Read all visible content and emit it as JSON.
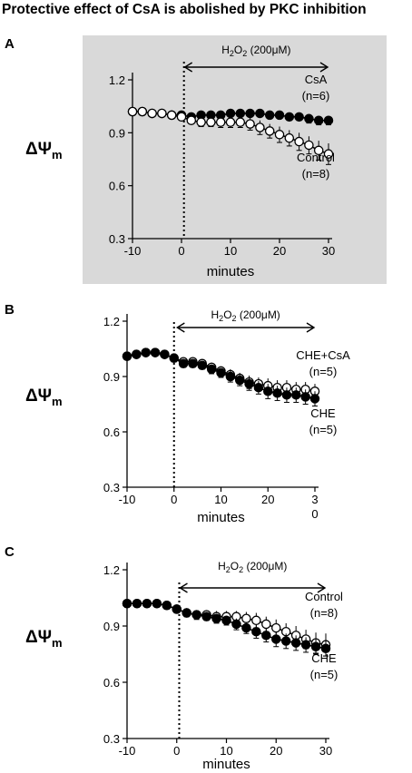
{
  "title": "Protective effect of CsA is abolished by PKC inhibition",
  "panels": [
    {
      "letter": "A",
      "shaded": true
    },
    {
      "letter": "B",
      "shaded": false
    },
    {
      "letter": "C",
      "shaded": false
    }
  ],
  "colors": {
    "panel_background": "#d9d9d9",
    "axis": "#000000",
    "filled_marker": "#000000",
    "open_marker": "#ffffff"
  },
  "chart_data": [
    {
      "type": "line",
      "panel": "A",
      "xlabel": "minutes",
      "ylabel": "ΔΨm",
      "ylabel_main": "ΔΨ",
      "ylabel_sub": "m",
      "xlim": [
        -10,
        30
      ],
      "ylim": [
        0.3,
        1.2
      ],
      "x_ticks": [
        -10,
        0,
        10,
        20,
        30
      ],
      "x_tick_labels": [
        "-10",
        "0",
        "10",
        "20",
        "30"
      ],
      "y_ticks": [
        0.3,
        0.6,
        0.9,
        1.2
      ],
      "y_tick_labels": [
        "0.3",
        "0.6",
        "0.9",
        "1.2"
      ],
      "grid": false,
      "dotted_line_x": 0.5,
      "annotation": {
        "text_main": "H",
        "sub1": "2",
        "mid": "O",
        "sub2": "2",
        "tail": " (200μM)",
        "x_start": 0.5,
        "x_end": 30
      },
      "series": [
        {
          "name": "CsA",
          "label_n": "(n=6)",
          "marker": "filled",
          "x": [
            -10,
            -8,
            -6,
            -4,
            -2,
            0,
            2,
            4,
            6,
            8,
            10,
            12,
            14,
            16,
            18,
            20,
            22,
            24,
            26,
            28,
            30
          ],
          "y": [
            1.02,
            1.02,
            1.01,
            1.01,
            1.0,
            1.0,
            0.99,
            1.0,
            1.0,
            1.0,
            1.01,
            1.01,
            1.01,
            1.01,
            1.0,
            1.0,
            0.99,
            0.99,
            0.98,
            0.97,
            0.97
          ],
          "err": [
            0.015,
            0.015,
            0.015,
            0.015,
            0.015,
            0.015,
            0.015,
            0.015,
            0.015,
            0.015,
            0.02,
            0.02,
            0.02,
            0.02,
            0.02,
            0.02,
            0.02,
            0.02,
            0.025,
            0.025,
            0.025
          ]
        },
        {
          "name": "Control",
          "label_n": "(n=8)",
          "marker": "open",
          "x": [
            -10,
            -8,
            -6,
            -4,
            -2,
            0,
            2,
            4,
            6,
            8,
            10,
            12,
            14,
            16,
            18,
            20,
            22,
            24,
            26,
            28,
            30
          ],
          "y": [
            1.02,
            1.02,
            1.01,
            1.01,
            1.0,
            0.99,
            0.97,
            0.96,
            0.96,
            0.96,
            0.96,
            0.96,
            0.95,
            0.93,
            0.91,
            0.89,
            0.87,
            0.85,
            0.83,
            0.8,
            0.78
          ],
          "err": [
            0.02,
            0.02,
            0.02,
            0.02,
            0.02,
            0.02,
            0.02,
            0.025,
            0.025,
            0.03,
            0.03,
            0.03,
            0.035,
            0.04,
            0.04,
            0.045,
            0.045,
            0.05,
            0.05,
            0.055,
            0.06
          ]
        }
      ]
    },
    {
      "type": "line",
      "panel": "B",
      "xlabel": "minutes",
      "ylabel": "ΔΨm",
      "ylabel_main": "ΔΨ",
      "ylabel_sub": "m",
      "xlim": [
        -10,
        30
      ],
      "ylim": [
        0.3,
        1.2
      ],
      "x_ticks": [
        -10,
        0,
        10,
        20,
        30
      ],
      "x_tick_labels": [
        "-10",
        "0",
        "10",
        "20",
        "3\n0"
      ],
      "y_ticks": [
        0.3,
        0.6,
        0.9,
        1.2
      ],
      "y_tick_labels": [
        "0.3",
        "0.6",
        "0.9",
        "1.2"
      ],
      "grid": false,
      "dotted_line_x": 0,
      "annotation": {
        "text_main": "H",
        "sub1": "2",
        "mid": "O",
        "sub2": "2",
        "tail": " (200μM)",
        "x_start": 0.5,
        "x_end": 30
      },
      "series": [
        {
          "name": "CHE+CsA",
          "label_n": "(n=5)",
          "marker": "open",
          "x": [
            -10,
            -8,
            -6,
            -4,
            -2,
            0,
            2,
            4,
            6,
            8,
            10,
            12,
            14,
            16,
            18,
            20,
            22,
            24,
            26,
            28,
            30
          ],
          "y": [
            1.01,
            1.02,
            1.03,
            1.03,
            1.02,
            1.0,
            0.98,
            0.98,
            0.97,
            0.95,
            0.93,
            0.91,
            0.89,
            0.87,
            0.86,
            0.85,
            0.84,
            0.84,
            0.83,
            0.83,
            0.82
          ],
          "err": [
            0.015,
            0.015,
            0.015,
            0.015,
            0.015,
            0.02,
            0.02,
            0.02,
            0.02,
            0.025,
            0.025,
            0.03,
            0.03,
            0.035,
            0.035,
            0.04,
            0.04,
            0.04,
            0.04,
            0.04,
            0.04
          ]
        },
        {
          "name": "CHE",
          "label_n": "(n=5)",
          "marker": "filled",
          "x": [
            -10,
            -8,
            -6,
            -4,
            -2,
            0,
            2,
            4,
            6,
            8,
            10,
            12,
            14,
            16,
            18,
            20,
            22,
            24,
            26,
            28,
            30
          ],
          "y": [
            1.01,
            1.02,
            1.03,
            1.03,
            1.02,
            1.0,
            0.97,
            0.97,
            0.96,
            0.94,
            0.92,
            0.9,
            0.88,
            0.86,
            0.84,
            0.82,
            0.81,
            0.8,
            0.8,
            0.79,
            0.78
          ],
          "err": [
            0.015,
            0.015,
            0.015,
            0.015,
            0.015,
            0.02,
            0.02,
            0.02,
            0.02,
            0.025,
            0.025,
            0.03,
            0.03,
            0.035,
            0.035,
            0.04,
            0.04,
            0.04,
            0.04,
            0.04,
            0.04
          ]
        }
      ]
    },
    {
      "type": "line",
      "panel": "C",
      "xlabel": "minutes",
      "ylabel": "ΔΨm",
      "ylabel_main": "ΔΨ",
      "ylabel_sub": "m",
      "xlim": [
        -10,
        30
      ],
      "ylim": [
        0.3,
        1.2
      ],
      "x_ticks": [
        -10,
        0,
        10,
        20,
        30
      ],
      "x_tick_labels": [
        "-10",
        "0",
        "10",
        "20",
        "30"
      ],
      "y_ticks": [
        0.3,
        0.6,
        0.9,
        1.2
      ],
      "y_tick_labels": [
        "0.3",
        "0.6",
        "0.9",
        "1.2"
      ],
      "grid": false,
      "dotted_line_x": 0.5,
      "annotation": {
        "text_main": "H",
        "sub1": "2",
        "mid": "O",
        "sub2": "2",
        "tail": " (200μM)",
        "x_start": 0.5,
        "x_end": 30
      },
      "series": [
        {
          "name": "Control",
          "label_n": "(n=8)",
          "marker": "open",
          "x": [
            -10,
            -8,
            -6,
            -4,
            -2,
            0,
            2,
            4,
            6,
            8,
            10,
            12,
            14,
            16,
            18,
            20,
            22,
            24,
            26,
            28,
            30
          ],
          "y": [
            1.02,
            1.02,
            1.02,
            1.02,
            1.01,
            0.99,
            0.97,
            0.96,
            0.96,
            0.95,
            0.95,
            0.95,
            0.94,
            0.93,
            0.91,
            0.89,
            0.87,
            0.85,
            0.83,
            0.81,
            0.8
          ],
          "err": [
            0.02,
            0.02,
            0.02,
            0.02,
            0.02,
            0.02,
            0.02,
            0.025,
            0.025,
            0.03,
            0.03,
            0.03,
            0.035,
            0.04,
            0.04,
            0.045,
            0.045,
            0.05,
            0.05,
            0.055,
            0.06
          ]
        },
        {
          "name": "CHE",
          "label_n": "(n=5)",
          "marker": "filled",
          "x": [
            -10,
            -8,
            -6,
            -4,
            -2,
            0,
            2,
            4,
            6,
            8,
            10,
            12,
            14,
            16,
            18,
            20,
            22,
            24,
            26,
            28,
            30
          ],
          "y": [
            1.02,
            1.02,
            1.02,
            1.02,
            1.01,
            0.99,
            0.97,
            0.96,
            0.95,
            0.94,
            0.93,
            0.91,
            0.89,
            0.87,
            0.85,
            0.83,
            0.82,
            0.81,
            0.8,
            0.79,
            0.78
          ],
          "err": [
            0.015,
            0.015,
            0.015,
            0.015,
            0.015,
            0.02,
            0.02,
            0.02,
            0.02,
            0.025,
            0.025,
            0.03,
            0.03,
            0.035,
            0.035,
            0.04,
            0.04,
            0.04,
            0.04,
            0.04,
            0.04
          ]
        }
      ]
    }
  ]
}
